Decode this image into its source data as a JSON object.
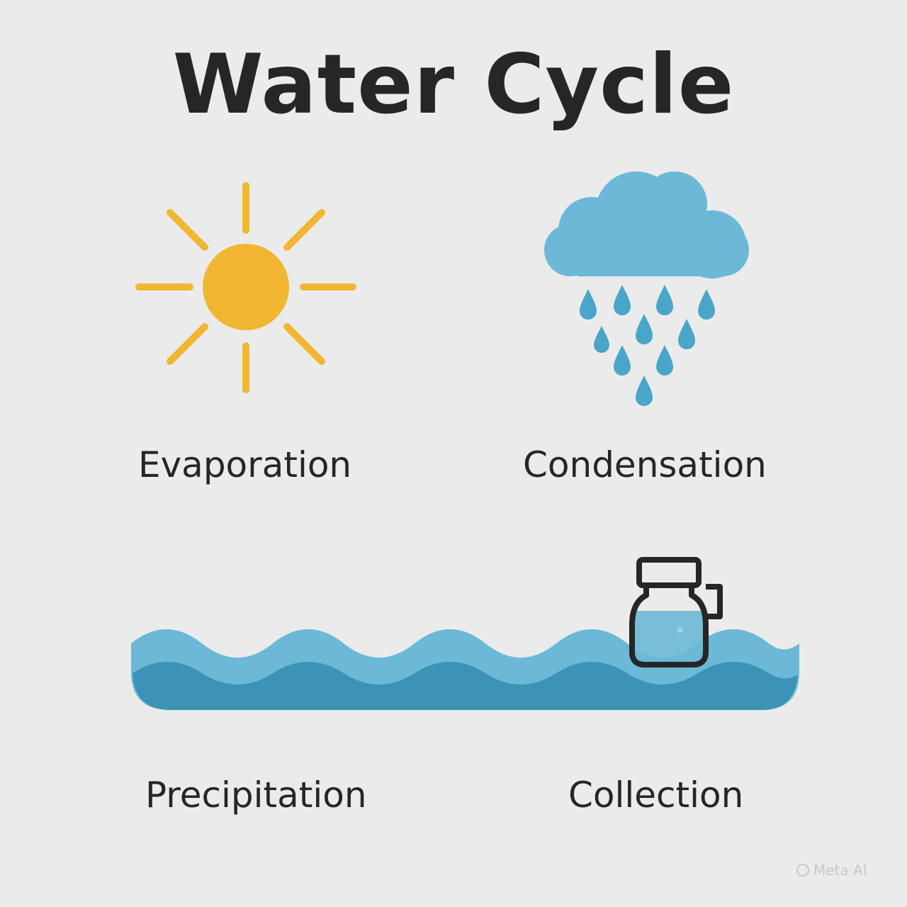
{
  "title": "Water Cycle",
  "stages": {
    "evaporation": {
      "label": "Evaporation",
      "icon": "sun-icon"
    },
    "condensation": {
      "label": "Condensation",
      "icon": "rain-cloud-icon"
    },
    "precipitation": {
      "label": "Precipitation",
      "icon": "water-waves-icon"
    },
    "collection": {
      "label": "Collection",
      "icon": "jar-icon"
    }
  },
  "colors": {
    "background": "#ebebeb",
    "text": "#262626",
    "sun": "#f1b733",
    "cloud": "#6bb9d6",
    "drop": "#4aa6c8",
    "water_light": "#6bb9d6",
    "water_dark": "#3d93b5",
    "jar_outline": "#262626"
  },
  "watermark": {
    "text": "Meta AI"
  }
}
